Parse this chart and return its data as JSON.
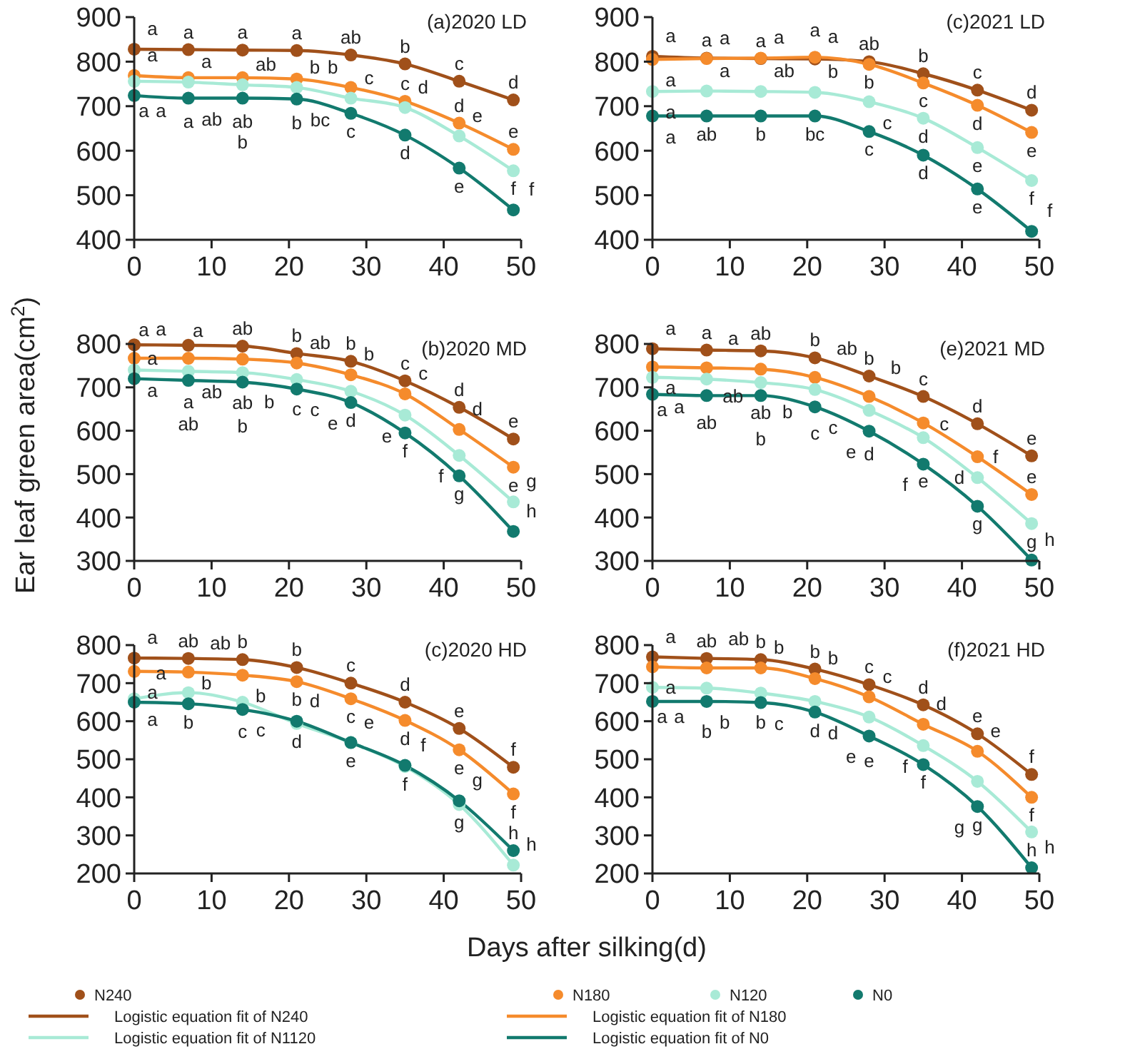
{
  "chart_data": [
    {
      "type": "scatter",
      "title": "(a)2020 LD",
      "x": [
        0,
        7,
        14,
        21,
        28,
        35,
        42,
        49
      ],
      "xlim": [
        0,
        50
      ],
      "xticks": [
        0,
        10,
        20,
        30,
        40,
        50
      ],
      "ylim": [
        400,
        900
      ],
      "yticks": [
        400,
        500,
        600,
        700,
        800,
        900
      ],
      "series": [
        {
          "type": "line",
          "color": "#a0501a",
          "values": [
            828,
            827,
            826,
            825,
            815,
            795,
            756,
            714
          ]
        },
        {
          "type": "line",
          "color": "#f58b2c",
          "values": [
            769,
            764,
            764,
            761,
            742,
            711,
            662,
            603
          ]
        },
        {
          "type": "line",
          "color": "#a8ead6",
          "values": [
            756,
            754,
            748,
            742,
            718,
            697,
            633,
            555
          ]
        },
        {
          "type": "line",
          "color": "#127a6e",
          "values": [
            724,
            718,
            718,
            716,
            684,
            635,
            561,
            467
          ]
        },
        {
          "type": "scatter",
          "marker": "circle",
          "color": "#a0501a",
          "values": [
            828,
            827,
            826,
            825,
            815,
            795,
            756,
            714
          ],
          "value_labels": [
            "a",
            "a",
            "a",
            "a",
            "ab",
            "b",
            "c",
            "d"
          ]
        },
        {
          "type": "scatter",
          "marker": "circle",
          "color": "#f58b2c",
          "values": [
            769,
            764,
            764,
            761,
            742,
            711,
            662,
            603
          ],
          "value_labels": [
            "a",
            "a",
            "ab",
            "b",
            "b",
            "c",
            "d",
            "e"
          ]
        },
        {
          "type": "scatter",
          "marker": "circle",
          "color": "#a8ead6",
          "values": [
            756,
            754,
            748,
            742,
            718,
            697,
            633,
            555
          ],
          "value_labels": [
            "a",
            "a",
            "ab",
            "b",
            "c",
            "d",
            "e",
            "f"
          ]
        },
        {
          "type": "scatter",
          "marker": "circle",
          "color": "#127a6e",
          "values": [
            724,
            718,
            718,
            716,
            684,
            635,
            561,
            467
          ],
          "value_labels": [
            "a",
            "ab",
            "b",
            "bc",
            "c",
            "d",
            "e",
            "f"
          ]
        }
      ]
    },
    {
      "type": "scatter",
      "title": "(c)2021 LD",
      "x": [
        0,
        7,
        14,
        21,
        28,
        35,
        42,
        49
      ],
      "xlim": [
        0,
        50
      ],
      "xticks": [
        0,
        10,
        20,
        30,
        40,
        50
      ],
      "ylim": [
        400,
        900
      ],
      "yticks": [
        400,
        500,
        600,
        700,
        800,
        900
      ],
      "series": [
        {
          "type": "line",
          "color": "#a0501a",
          "values": [
            812,
            808,
            807,
            806,
            800,
            773,
            736,
            691
          ]
        },
        {
          "type": "line",
          "color": "#f58b2c",
          "values": [
            805,
            807,
            808,
            810,
            794,
            752,
            702,
            641
          ]
        },
        {
          "type": "line",
          "color": "#a8ead6",
          "values": [
            733,
            734,
            733,
            731,
            710,
            673,
            607,
            533
          ]
        },
        {
          "type": "line",
          "color": "#127a6e",
          "values": [
            678,
            678,
            678,
            678,
            643,
            590,
            514,
            419
          ]
        },
        {
          "type": "scatter",
          "marker": "circle",
          "color": "#a0501a",
          "values": [
            812,
            808,
            807,
            806,
            800,
            773,
            736,
            691
          ],
          "value_labels": [
            "a",
            "a",
            "a",
            "a",
            "ab",
            "b",
            "c",
            "d"
          ]
        },
        {
          "type": "scatter",
          "marker": "circle",
          "color": "#f58b2c",
          "values": [
            805,
            807,
            808,
            810,
            794,
            752,
            702,
            641
          ],
          "value_labels": [
            "a",
            "a",
            "a",
            "a",
            "b",
            "c",
            "d",
            "e"
          ]
        },
        {
          "type": "scatter",
          "marker": "circle",
          "color": "#a8ead6",
          "values": [
            733,
            734,
            733,
            731,
            710,
            673,
            607,
            533
          ],
          "value_labels": [
            "a",
            "a",
            "ab",
            "b",
            "c",
            "d",
            "e",
            "f"
          ]
        },
        {
          "type": "scatter",
          "marker": "circle",
          "color": "#127a6e",
          "values": [
            678,
            678,
            678,
            678,
            643,
            590,
            514,
            419
          ],
          "value_labels": [
            "a",
            "ab",
            "b",
            "bc",
            "c",
            "d",
            "e",
            "f"
          ]
        }
      ]
    },
    {
      "type": "scatter",
      "title": "(b)2020 MD",
      "ylabel": "Ear leaf green area(cm$^{2}$)",
      "x": [
        0,
        7,
        14,
        21,
        28,
        35,
        42,
        49
      ],
      "xlim": [
        0,
        50
      ],
      "xticks": [
        0,
        10,
        20,
        30,
        40,
        50
      ],
      "ylim": [
        300,
        800
      ],
      "yticks": [
        300,
        400,
        500,
        600,
        700,
        800
      ],
      "series": [
        {
          "type": "line",
          "color": "#a0501a",
          "values": [
            798,
            797,
            795,
            778,
            760,
            715,
            654,
            581
          ]
        },
        {
          "type": "line",
          "color": "#f58b2c",
          "values": [
            767,
            767,
            765,
            756,
            729,
            685,
            603,
            516
          ]
        },
        {
          "type": "line",
          "color": "#a8ead6",
          "values": [
            740,
            737,
            734,
            718,
            691,
            636,
            543,
            436
          ]
        },
        {
          "type": "line",
          "color": "#127a6e",
          "values": [
            720,
            716,
            712,
            696,
            665,
            595,
            496,
            368
          ]
        },
        {
          "type": "scatter",
          "marker": "circle",
          "color": "#a0501a",
          "values": [
            798,
            797,
            795,
            778,
            760,
            715,
            654,
            581
          ],
          "value_labels": [
            "a",
            "a",
            "ab",
            "b",
            "b",
            "c",
            "d",
            "e"
          ]
        },
        {
          "type": "scatter",
          "marker": "circle",
          "color": "#f58b2c",
          "values": [
            767,
            767,
            765,
            756,
            729,
            685,
            603,
            516
          ],
          "value_labels": [
            "a",
            "a",
            "ab",
            "ab",
            "b",
            "c",
            "d",
            "e"
          ]
        },
        {
          "type": "scatter",
          "marker": "circle",
          "color": "#a8ead6",
          "values": [
            740,
            737,
            734,
            718,
            691,
            636,
            543,
            436
          ],
          "value_labels": [
            "a",
            "ab",
            "b",
            "c",
            "d",
            "e",
            "f",
            "g"
          ]
        },
        {
          "type": "scatter",
          "marker": "circle",
          "color": "#127a6e",
          "values": [
            720,
            716,
            712,
            696,
            665,
            595,
            496,
            368
          ],
          "value_labels": [
            "a",
            "ab",
            "b",
            "c",
            "e",
            "f",
            "g",
            "h"
          ]
        }
      ]
    },
    {
      "type": "scatter",
      "title": "(e)2021 MD",
      "x": [
        0,
        7,
        14,
        21,
        28,
        35,
        42,
        49
      ],
      "xlim": [
        0,
        50
      ],
      "xticks": [
        0,
        10,
        20,
        30,
        40,
        50
      ],
      "ylim": [
        300,
        800
      ],
      "yticks": [
        300,
        400,
        500,
        600,
        700,
        800
      ],
      "series": [
        {
          "type": "line",
          "color": "#a0501a",
          "values": [
            789,
            786,
            784,
            768,
            726,
            679,
            616,
            542
          ]
        },
        {
          "type": "line",
          "color": "#f58b2c",
          "values": [
            747,
            745,
            742,
            723,
            679,
            618,
            540,
            453
          ]
        },
        {
          "type": "line",
          "color": "#a8ead6",
          "values": [
            723,
            719,
            711,
            695,
            647,
            584,
            492,
            386
          ]
        },
        {
          "type": "line",
          "color": "#127a6e",
          "values": [
            684,
            681,
            681,
            655,
            599,
            523,
            426,
            302
          ]
        },
        {
          "type": "scatter",
          "marker": "circle",
          "color": "#a0501a",
          "values": [
            789,
            786,
            784,
            768,
            726,
            679,
            616,
            542
          ],
          "value_labels": [
            "a",
            "a",
            "ab",
            "b",
            "b",
            "c",
            "d",
            "e"
          ]
        },
        {
          "type": "scatter",
          "marker": "circle",
          "color": "#f58b2c",
          "values": [
            747,
            745,
            742,
            723,
            679,
            618,
            540,
            453
          ],
          "value_labels": [
            "a",
            "a",
            "ab",
            "ab",
            "b",
            "c",
            "d",
            "e"
          ]
        },
        {
          "type": "scatter",
          "marker": "circle",
          "color": "#a8ead6",
          "values": [
            723,
            719,
            711,
            695,
            647,
            584,
            492,
            386
          ],
          "value_labels": [
            "a",
            "ab",
            "b",
            "c",
            "d",
            "e",
            "f",
            "g"
          ]
        },
        {
          "type": "scatter",
          "marker": "circle",
          "color": "#127a6e",
          "values": [
            684,
            681,
            681,
            655,
            599,
            523,
            426,
            302
          ],
          "value_labels": [
            "a",
            "ab",
            "b",
            "c",
            "e",
            "f",
            "g",
            "h"
          ]
        }
      ]
    },
    {
      "type": "scatter",
      "title": "(c)2020 HD",
      "xlabel": "Days after silking(d)",
      "x": [
        0,
        7,
        14,
        21,
        28,
        35,
        42,
        49
      ],
      "xlim": [
        0,
        50
      ],
      "xticks": [
        0,
        10,
        20,
        30,
        40,
        50
      ],
      "ylim": [
        200,
        800
      ],
      "yticks": [
        200,
        300,
        400,
        500,
        600,
        700,
        800
      ],
      "series": [
        {
          "type": "line",
          "color": "#a0501a",
          "values": [
            766,
            765,
            762,
            741,
            700,
            650,
            581,
            479
          ]
        },
        {
          "type": "line",
          "color": "#f58b2c",
          "values": [
            731,
            729,
            721,
            704,
            659,
            602,
            525,
            409
          ]
        },
        {
          "type": "line",
          "color": "#a8ead6",
          "values": [
            659,
            675,
            650,
            594,
            544,
            481,
            381,
            222
          ]
        },
        {
          "type": "line",
          "color": "#127a6e",
          "values": [
            650,
            646,
            631,
            600,
            544,
            484,
            391,
            260
          ]
        },
        {
          "type": "scatter",
          "marker": "circle",
          "color": "#a0501a",
          "values": [
            766,
            765,
            762,
            741,
            700,
            650,
            581,
            479
          ],
          "value_labels": [
            "a",
            "ab",
            "b",
            "b",
            "c",
            "d",
            "e",
            "f"
          ]
        },
        {
          "type": "scatter",
          "marker": "circle",
          "color": "#f58b2c",
          "values": [
            731,
            729,
            721,
            704,
            659,
            602,
            525,
            409
          ],
          "value_labels": [
            "a",
            "ab",
            "b",
            "b",
            "c",
            "d",
            "e",
            "f"
          ]
        },
        {
          "type": "scatter",
          "marker": "circle",
          "color": "#a8ead6",
          "values": [
            659,
            675,
            650,
            594,
            544,
            481,
            381,
            222
          ],
          "value_labels": [
            "a",
            "b",
            "c",
            "d",
            "e",
            "f",
            "g",
            "h"
          ]
        },
        {
          "type": "scatter",
          "marker": "circle",
          "color": "#127a6e",
          "values": [
            650,
            646,
            631,
            600,
            544,
            484,
            391,
            260
          ],
          "value_labels": [
            "a",
            "b",
            "c",
            "d",
            "e",
            "f",
            "g",
            "h"
          ]
        }
      ]
    },
    {
      "type": "scatter",
      "title": "(f)2021 HD",
      "legend": "bottom",
      "x": [
        0,
        7,
        14,
        21,
        28,
        35,
        42,
        49
      ],
      "xlim": [
        0,
        50
      ],
      "xticks": [
        0,
        10,
        20,
        30,
        40,
        50
      ],
      "ylim": [
        200,
        800
      ],
      "yticks": [
        200,
        300,
        400,
        500,
        600,
        700,
        800
      ],
      "series": [
        {
          "type": "line",
          "name": "Logistic equation fit of N240",
          "color": "#a0501a",
          "values": [
            769,
            765,
            762,
            737,
            696,
            643,
            567,
            460
          ]
        },
        {
          "type": "line",
          "name": "Logistic equation fit of N180",
          "color": "#f58b2c",
          "values": [
            743,
            740,
            740,
            712,
            664,
            592,
            521,
            400
          ]
        },
        {
          "type": "line",
          "name": "Logistic equation fit of N1120",
          "color": "#a8ead6",
          "values": [
            689,
            687,
            674,
            652,
            611,
            536,
            442,
            309
          ]
        },
        {
          "type": "line",
          "name": "Logistic equation fit of N0",
          "color": "#127a6e",
          "values": [
            652,
            652,
            649,
            624,
            561,
            486,
            376,
            215
          ]
        },
        {
          "type": "scatter",
          "marker": "circle",
          "name": "N240",
          "color": "#a0501a",
          "values": [
            769,
            765,
            762,
            737,
            696,
            643,
            567,
            460
          ],
          "value_labels": [
            "a",
            "ab",
            "b",
            "b",
            "c",
            "d",
            "e",
            "f"
          ]
        },
        {
          "type": "scatter",
          "marker": "circle",
          "name": "N180",
          "color": "#f58b2c",
          "values": [
            743,
            740,
            740,
            712,
            664,
            592,
            521,
            400
          ],
          "value_labels": [
            "a",
            "ab",
            "b",
            "b",
            "c",
            "d",
            "e",
            "f"
          ]
        },
        {
          "type": "scatter",
          "marker": "circle",
          "name": "N120",
          "color": "#a8ead6",
          "values": [
            689,
            687,
            674,
            652,
            611,
            536,
            442,
            309
          ],
          "value_labels": [
            "a",
            "b",
            "b",
            "d",
            "e",
            "f",
            "g",
            "h"
          ]
        },
        {
          "type": "scatter",
          "marker": "circle",
          "name": "N0",
          "color": "#127a6e",
          "values": [
            652,
            652,
            649,
            624,
            561,
            486,
            376,
            215
          ],
          "value_labels": [
            "a",
            "b",
            "c",
            "d",
            "e",
            "f",
            "g",
            "h"
          ]
        }
      ]
    }
  ]
}
